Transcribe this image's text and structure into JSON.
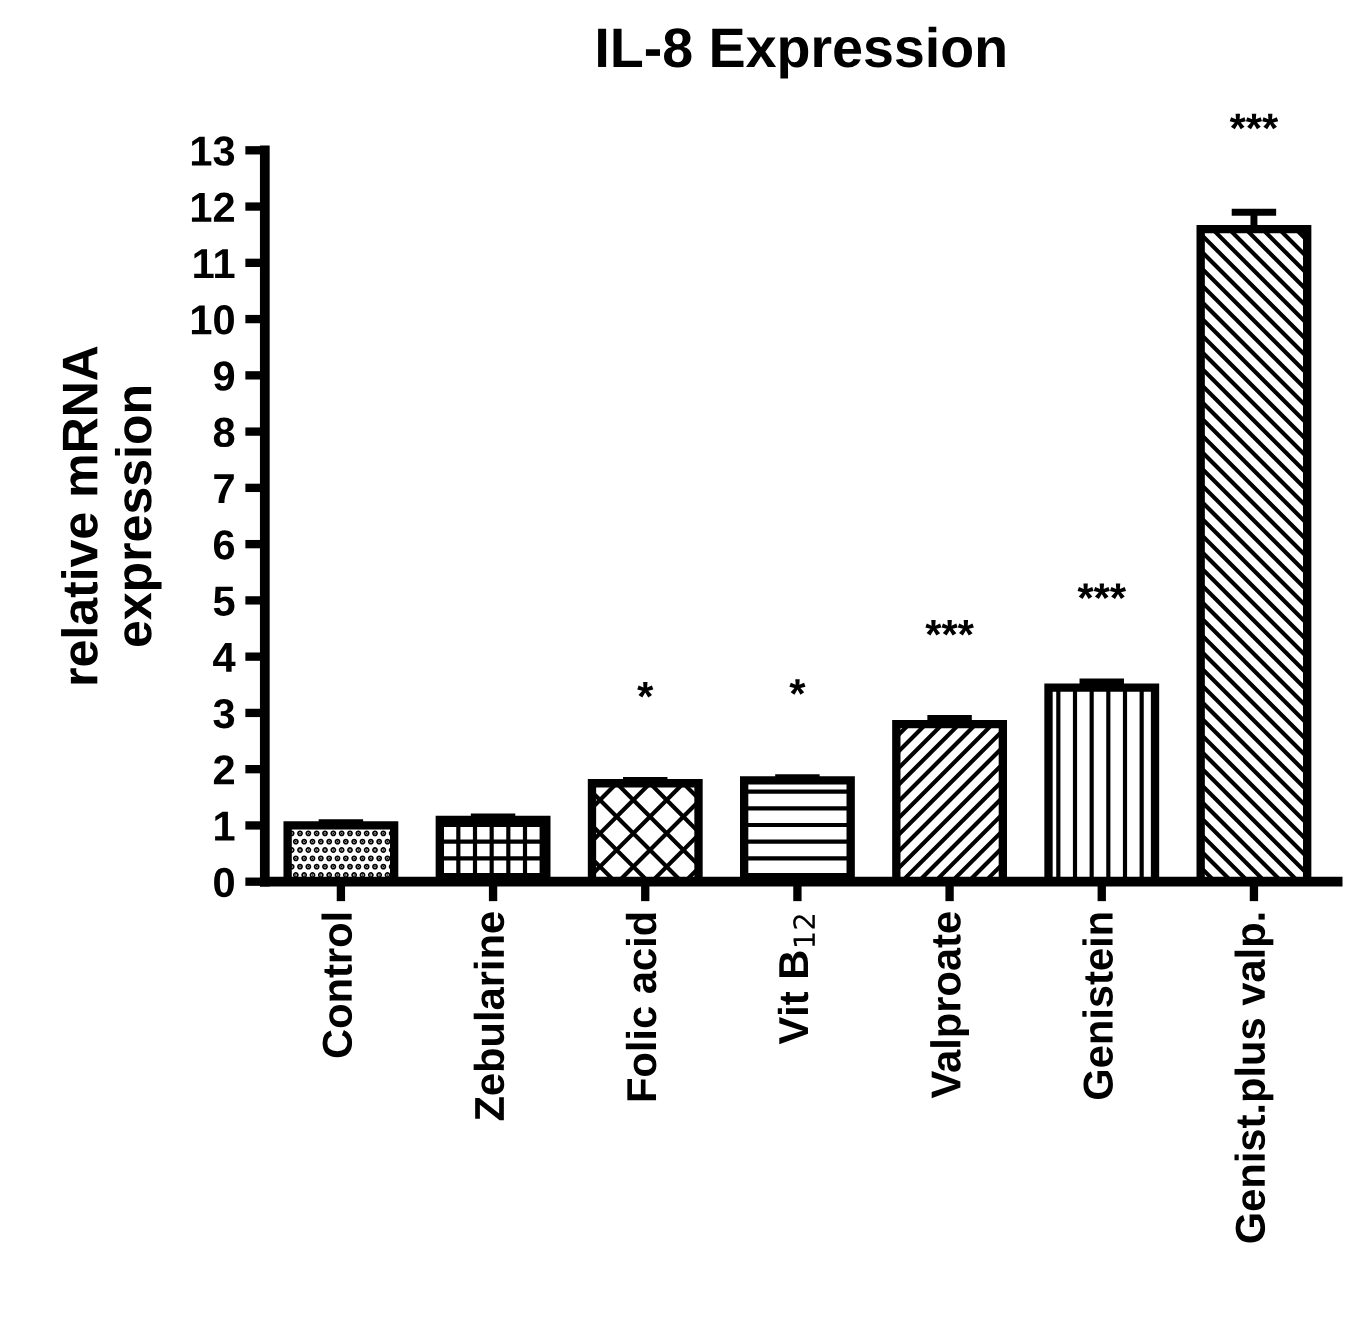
{
  "chart_data": {
    "type": "bar",
    "title": "IL-8 Expression",
    "ylabel": "relative mRNA\nexpression",
    "categories": [
      "Control",
      "Zebularine",
      "Folic acid",
      "Vit B$_{12}$",
      "Valproate",
      "Genistein",
      "Genist.plus valp."
    ],
    "values": [
      1.0,
      1.1,
      1.75,
      1.8,
      2.8,
      3.45,
      11.6
    ],
    "errors": [
      0.05,
      0.05,
      0.05,
      0.05,
      0.1,
      0.1,
      0.3
    ],
    "color": "#000000",
    "value_labels": [
      null,
      null,
      "*",
      "*",
      "***",
      "***",
      "***"
    ],
    "ylim": [
      0,
      13
    ],
    "yticks": [
      0,
      1,
      2,
      3,
      4,
      5,
      6,
      7,
      8,
      9,
      10,
      11,
      12,
      13
    ],
    "grid": false
  }
}
